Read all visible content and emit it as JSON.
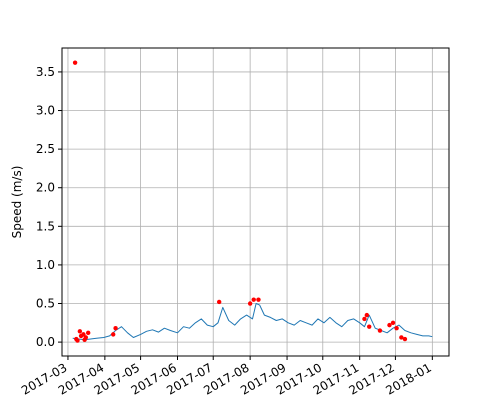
{
  "chart_data": {
    "type": "line",
    "title": "",
    "xlabel": "",
    "ylabel": "Speed (m/s)",
    "x_ticks": [
      "2017-03",
      "2017-04",
      "2017-05",
      "2017-06",
      "2017-07",
      "2017-08",
      "2017-09",
      "2017-10",
      "2017-11",
      "2017-12",
      "2018-01"
    ],
    "y_ticks": [
      "0.0",
      "0.5",
      "1.0",
      "1.5",
      "2.0",
      "2.5",
      "3.0",
      "3.5"
    ],
    "xlim": [
      "2017-02-24",
      "2018-01-15"
    ],
    "ylim": [
      -0.18,
      3.81
    ],
    "grid": true,
    "colors": {
      "series": "#1f77b4",
      "outliers": "#ff0000",
      "grid": "#b0b0b0"
    },
    "series": [
      {
        "x": [
          "2017-03-05",
          "2017-03-10",
          "2017-03-15",
          "2017-03-20",
          "2017-03-25",
          "2017-03-31",
          "2017-04-05",
          "2017-04-10",
          "2017-04-15",
          "2017-04-20",
          "2017-04-25",
          "2017-05-01",
          "2017-05-06",
          "2017-05-11",
          "2017-05-16",
          "2017-05-21",
          "2017-05-26",
          "2017-06-01",
          "2017-06-06",
          "2017-06-11",
          "2017-06-16",
          "2017-06-21",
          "2017-06-26",
          "2017-07-01",
          "2017-07-05",
          "2017-07-09",
          "2017-07-14",
          "2017-07-19",
          "2017-07-24",
          "2017-07-29",
          "2017-08-03",
          "2017-08-06",
          "2017-08-09",
          "2017-08-13",
          "2017-08-18",
          "2017-08-23",
          "2017-08-28",
          "2017-09-02",
          "2017-09-07",
          "2017-09-12",
          "2017-09-17",
          "2017-09-22",
          "2017-09-27",
          "2017-10-02",
          "2017-10-07",
          "2017-10-12",
          "2017-10-17",
          "2017-10-22",
          "2017-10-27",
          "2017-11-01",
          "2017-11-05",
          "2017-11-09",
          "2017-11-14",
          "2017-11-19",
          "2017-11-24",
          "2017-11-29",
          "2017-12-04",
          "2017-12-09",
          "2017-12-14",
          "2017-12-19",
          "2017-12-24",
          "2017-12-29",
          "2018-01-01"
        ],
        "y": [
          0.05,
          0.04,
          0.03,
          0.04,
          0.05,
          0.06,
          0.08,
          0.15,
          0.2,
          0.12,
          0.06,
          0.1,
          0.14,
          0.16,
          0.13,
          0.18,
          0.15,
          0.12,
          0.2,
          0.18,
          0.25,
          0.3,
          0.22,
          0.2,
          0.25,
          0.45,
          0.28,
          0.22,
          0.3,
          0.35,
          0.3,
          0.5,
          0.48,
          0.35,
          0.32,
          0.28,
          0.3,
          0.25,
          0.22,
          0.28,
          0.25,
          0.22,
          0.3,
          0.25,
          0.32,
          0.25,
          0.2,
          0.28,
          0.3,
          0.25,
          0.2,
          0.35,
          0.18,
          0.15,
          0.12,
          0.18,
          0.22,
          0.15,
          0.12,
          0.1,
          0.08,
          0.08,
          0.07
        ]
      }
    ],
    "outliers": {
      "x": [
        "2017-03-07",
        "2017-03-09",
        "2017-03-11",
        "2017-03-14",
        "2017-03-16",
        "2017-03-18",
        "2017-03-08",
        "2017-03-12",
        "2017-03-15",
        "2017-04-08",
        "2017-04-10",
        "2017-07-06",
        "2017-08-01",
        "2017-08-04",
        "2017-08-08",
        "2017-11-05",
        "2017-11-07",
        "2017-11-09",
        "2017-11-18",
        "2017-11-26",
        "2017-11-29",
        "2017-12-02",
        "2017-12-06",
        "2017-12-09"
      ],
      "y": [
        3.62,
        0.02,
        0.14,
        0.1,
        0.06,
        0.12,
        0.04,
        0.08,
        0.03,
        0.1,
        0.18,
        0.52,
        0.5,
        0.55,
        0.55,
        0.3,
        0.35,
        0.2,
        0.15,
        0.22,
        0.25,
        0.18,
        0.06,
        0.04
      ]
    }
  }
}
